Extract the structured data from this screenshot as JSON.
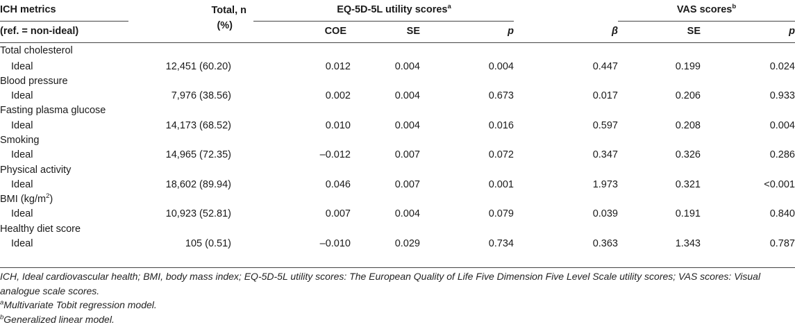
{
  "header": {
    "col_metrics_1": "ICH metrics",
    "col_metrics_2": "(ref. = non-ideal)",
    "col_total_1": "Total, n",
    "col_total_2": "(%)",
    "group_eq": "EQ-5D-5L utility scores",
    "group_eq_sup": "a",
    "group_vas": "VAS scores",
    "group_vas_sup": "b",
    "eq_coe": "COE",
    "eq_se": "SE",
    "eq_p": "p",
    "vas_beta": "β",
    "vas_se": "SE",
    "vas_p": "p"
  },
  "rows": [
    {
      "group": "Total cholesterol",
      "level": "Ideal",
      "total": "12,451 (60.20)",
      "coe": "0.012",
      "eq_se": "0.004",
      "eq_p": "0.004",
      "beta": "0.447",
      "vas_se": "0.199",
      "vas_p": "0.024"
    },
    {
      "group": "Blood pressure",
      "level": "Ideal",
      "total": "7,976 (38.56)",
      "coe": "0.002",
      "eq_se": "0.004",
      "eq_p": "0.673",
      "beta": "0.017",
      "vas_se": "0.206",
      "vas_p": "0.933"
    },
    {
      "group": "Fasting plasma glucose",
      "level": "Ideal",
      "total": "14,173 (68.52)",
      "coe": "0.010",
      "eq_se": "0.004",
      "eq_p": "0.016",
      "beta": "0.597",
      "vas_se": "0.208",
      "vas_p": "0.004"
    },
    {
      "group": "Smoking",
      "level": "Ideal",
      "total": "14,965 (72.35)",
      "coe": "–0.012",
      "eq_se": "0.007",
      "eq_p": "0.072",
      "beta": "0.347",
      "vas_se": "0.326",
      "vas_p": "0.286"
    },
    {
      "group": "Physical activity",
      "level": "Ideal",
      "total": "18,602 (89.94)",
      "coe": "0.046",
      "eq_se": "0.007",
      "eq_p": "0.001",
      "beta": "1.973",
      "vas_se": "0.321",
      "vas_p": "<0.001"
    },
    {
      "group": "BMI (kg/m",
      "group_sup": "2",
      "group_tail": ")",
      "level": "Ideal",
      "total": "10,923 (52.81)",
      "coe": "0.007",
      "eq_se": "0.004",
      "eq_p": "0.079",
      "beta": "0.039",
      "vas_se": "0.191",
      "vas_p": "0.840"
    },
    {
      "group": "Healthy diet score",
      "level": "Ideal",
      "total": "105 (0.51)",
      "coe": "–0.010",
      "eq_se": "0.029",
      "eq_p": "0.734",
      "beta": "0.363",
      "vas_se": "1.343",
      "vas_p": "0.787"
    }
  ],
  "notes": {
    "abbrev": "ICH, Ideal cardiovascular health; BMI, body mass index; EQ-5D-5L utility scores: The European Quality of Life Five Dimension Five Level Scale utility scores; VAS scores: Visual analogue scale scores.",
    "note_a_sup": "a",
    "note_a": "Multivariate Tobit regression model.",
    "note_b_sup": "b",
    "note_b": "Generalized linear model."
  }
}
